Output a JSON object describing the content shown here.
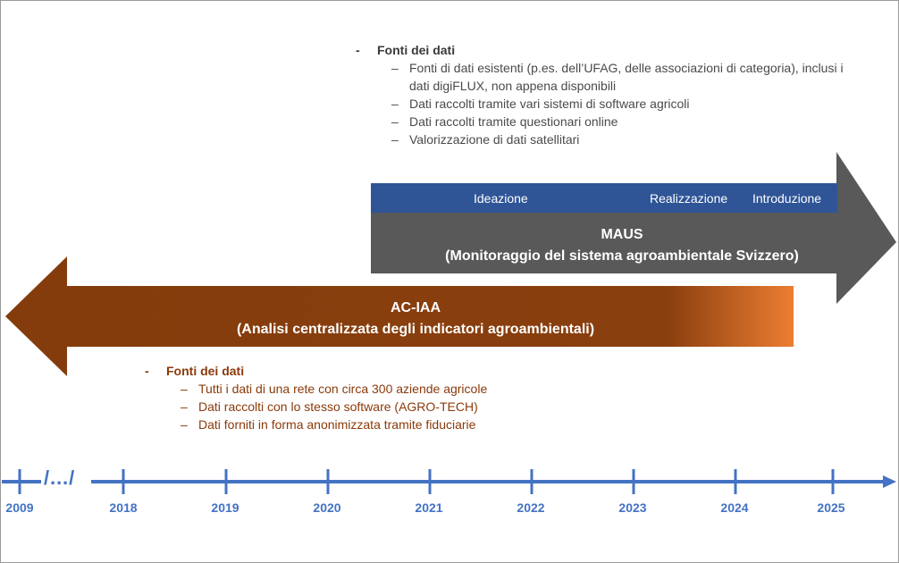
{
  "maus": {
    "title": "MAUS",
    "subtitle": "(Monitoraggio del sistema agroambientale Svizzero)",
    "phases": [
      "Ideazione",
      "Realizzazione",
      "Introduzione"
    ],
    "sources": {
      "dash": "-",
      "heading": "Fonti dei dati",
      "items": [
        "Fonti di dati esistenti (p.es. dell’UFAG, delle associazioni di categoria), inclusi i dati digiFLUX, non appena disponibili",
        "Dati raccolti tramite vari sistemi di software agricoli",
        "Dati raccolti tramite questionari online",
        "Valorizzazione di dati satellitari"
      ]
    }
  },
  "acia": {
    "title": "AC-IAA",
    "subtitle": "(Analisi centralizzata degli indicatori agroambientali)",
    "sources": {
      "dash": "-",
      "heading": "Fonti dei dati",
      "items": [
        "Tutti i dati di una rete con circa 300 aziende agricole",
        "Dati raccolti con lo stesso software (AGRO-TECH)",
        "Dati forniti in forma anonimizzata tramite fiduciarie"
      ]
    }
  },
  "timeline": {
    "years": [
      "2009",
      "2018",
      "2019",
      "2020",
      "2021",
      "2022",
      "2023",
      "2024",
      "2025"
    ],
    "gap_marker": "/…/"
  },
  "colors": {
    "blue": "#2f5597",
    "grey": "#595959",
    "brown": "#843c0c",
    "orange": "#ed7d31",
    "axis": "#4472c4"
  }
}
